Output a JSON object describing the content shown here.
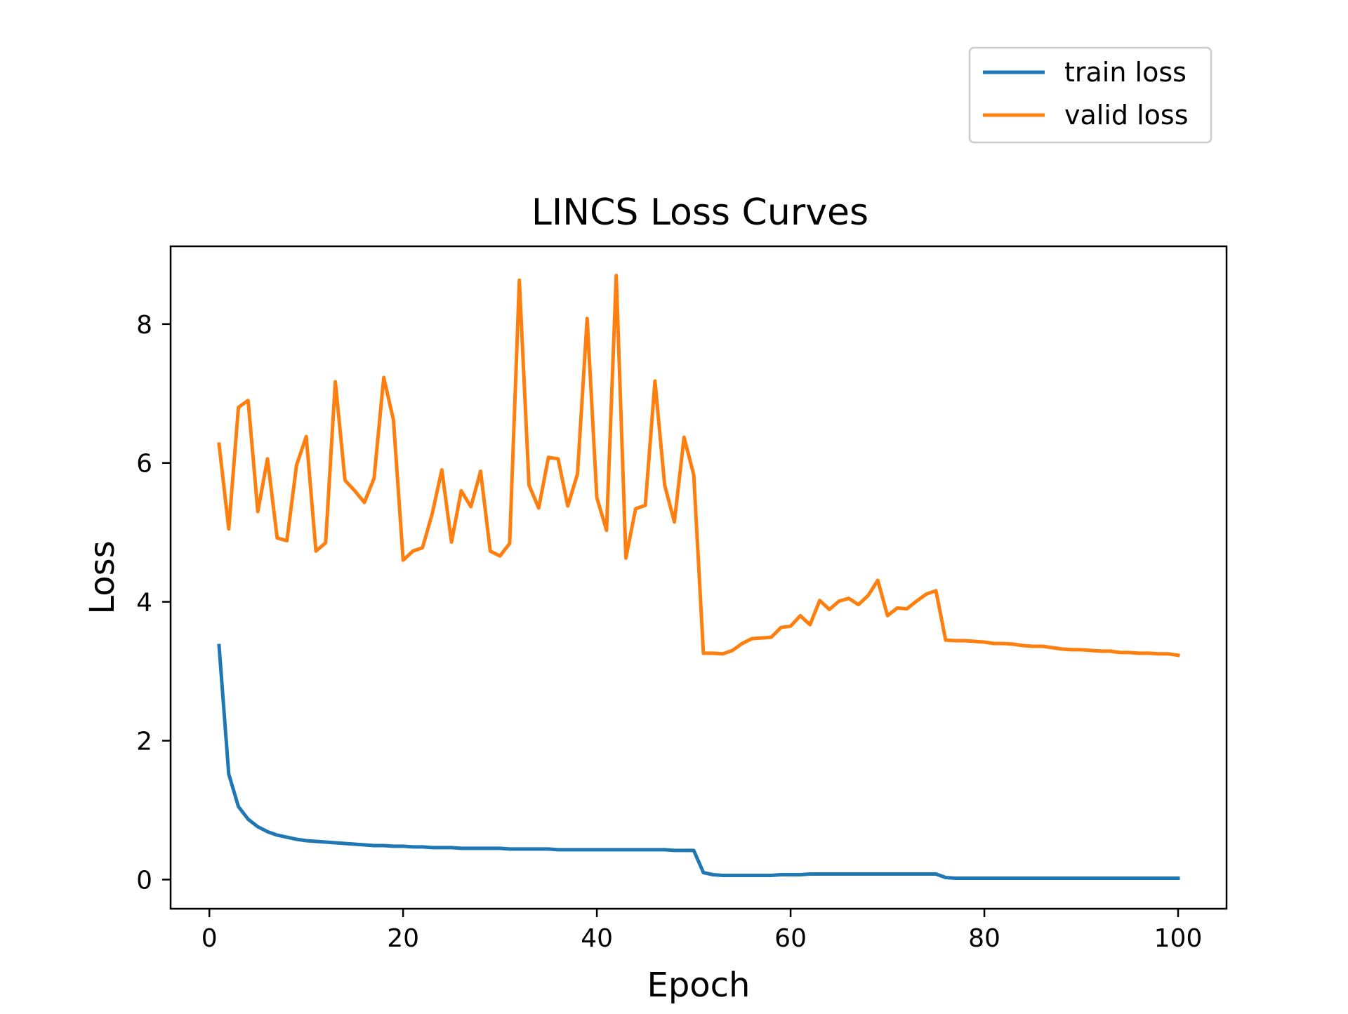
{
  "chart_data": {
    "type": "line",
    "title": "LINCS Loss Curves",
    "xlabel": "Epoch",
    "ylabel": "Loss",
    "xlim": [
      -4.0,
      105.0
    ],
    "ylim": [
      -0.42,
      9.12
    ],
    "xticks": [
      0,
      20,
      40,
      60,
      80,
      100
    ],
    "yticks": [
      0,
      2,
      4,
      6,
      8
    ],
    "grid": false,
    "legend_position": "top-right, outside the plot area",
    "x": [
      1,
      2,
      3,
      4,
      5,
      6,
      7,
      8,
      9,
      10,
      11,
      12,
      13,
      14,
      15,
      16,
      17,
      18,
      19,
      20,
      21,
      22,
      23,
      24,
      25,
      26,
      27,
      28,
      29,
      30,
      31,
      32,
      33,
      34,
      35,
      36,
      37,
      38,
      39,
      40,
      41,
      42,
      43,
      44,
      45,
      46,
      47,
      48,
      49,
      50,
      51,
      52,
      53,
      54,
      55,
      56,
      57,
      58,
      59,
      60,
      61,
      62,
      63,
      64,
      65,
      66,
      67,
      68,
      69,
      70,
      71,
      72,
      73,
      74,
      75,
      76,
      77,
      78,
      79,
      80,
      81,
      82,
      83,
      84,
      85,
      86,
      87,
      88,
      89,
      90,
      91,
      92,
      93,
      94,
      95,
      96,
      97,
      98,
      99,
      100
    ],
    "series": [
      {
        "name": "train loss",
        "color": "#1f77b4",
        "values": [
          3.37,
          1.52,
          1.05,
          0.87,
          0.76,
          0.69,
          0.64,
          0.61,
          0.58,
          0.56,
          0.55,
          0.54,
          0.53,
          0.52,
          0.51,
          0.5,
          0.49,
          0.49,
          0.48,
          0.48,
          0.47,
          0.47,
          0.46,
          0.46,
          0.46,
          0.45,
          0.45,
          0.45,
          0.45,
          0.45,
          0.44,
          0.44,
          0.44,
          0.44,
          0.44,
          0.43,
          0.43,
          0.43,
          0.43,
          0.43,
          0.43,
          0.43,
          0.43,
          0.43,
          0.43,
          0.43,
          0.43,
          0.42,
          0.42,
          0.42,
          0.1,
          0.07,
          0.06,
          0.06,
          0.06,
          0.06,
          0.06,
          0.06,
          0.07,
          0.07,
          0.07,
          0.08,
          0.08,
          0.08,
          0.08,
          0.08,
          0.08,
          0.08,
          0.08,
          0.08,
          0.08,
          0.08,
          0.08,
          0.08,
          0.08,
          0.03,
          0.02,
          0.02,
          0.02,
          0.02,
          0.02,
          0.02,
          0.02,
          0.02,
          0.02,
          0.02,
          0.02,
          0.02,
          0.02,
          0.02,
          0.02,
          0.02,
          0.02,
          0.02,
          0.02,
          0.02,
          0.02,
          0.02,
          0.02,
          0.02
        ]
      },
      {
        "name": "valid loss",
        "color": "#ff7f0e",
        "values": [
          6.27,
          5.05,
          6.8,
          6.9,
          5.3,
          6.06,
          4.92,
          4.88,
          5.97,
          6.38,
          4.73,
          4.85,
          7.17,
          5.75,
          5.6,
          5.43,
          5.78,
          7.23,
          6.62,
          4.6,
          4.73,
          4.78,
          5.27,
          5.9,
          4.86,
          5.6,
          5.37,
          5.88,
          4.73,
          4.66,
          4.84,
          8.63,
          5.68,
          5.35,
          6.08,
          6.06,
          5.38,
          5.84,
          8.08,
          5.5,
          5.03,
          8.7,
          4.63,
          5.34,
          5.39,
          7.18,
          5.68,
          5.15,
          6.37,
          5.83,
          3.26,
          3.26,
          3.25,
          3.3,
          3.4,
          3.47,
          3.48,
          3.49,
          3.63,
          3.65,
          3.8,
          3.67,
          4.02,
          3.89,
          4.01,
          4.05,
          3.96,
          4.09,
          4.31,
          3.8,
          3.91,
          3.9,
          4.01,
          4.11,
          4.16,
          3.45,
          3.44,
          3.44,
          3.43,
          3.42,
          3.4,
          3.4,
          3.39,
          3.37,
          3.36,
          3.36,
          3.34,
          3.32,
          3.31,
          3.31,
          3.3,
          3.29,
          3.29,
          3.27,
          3.27,
          3.26,
          3.26,
          3.25,
          3.25,
          3.23
        ]
      }
    ]
  }
}
